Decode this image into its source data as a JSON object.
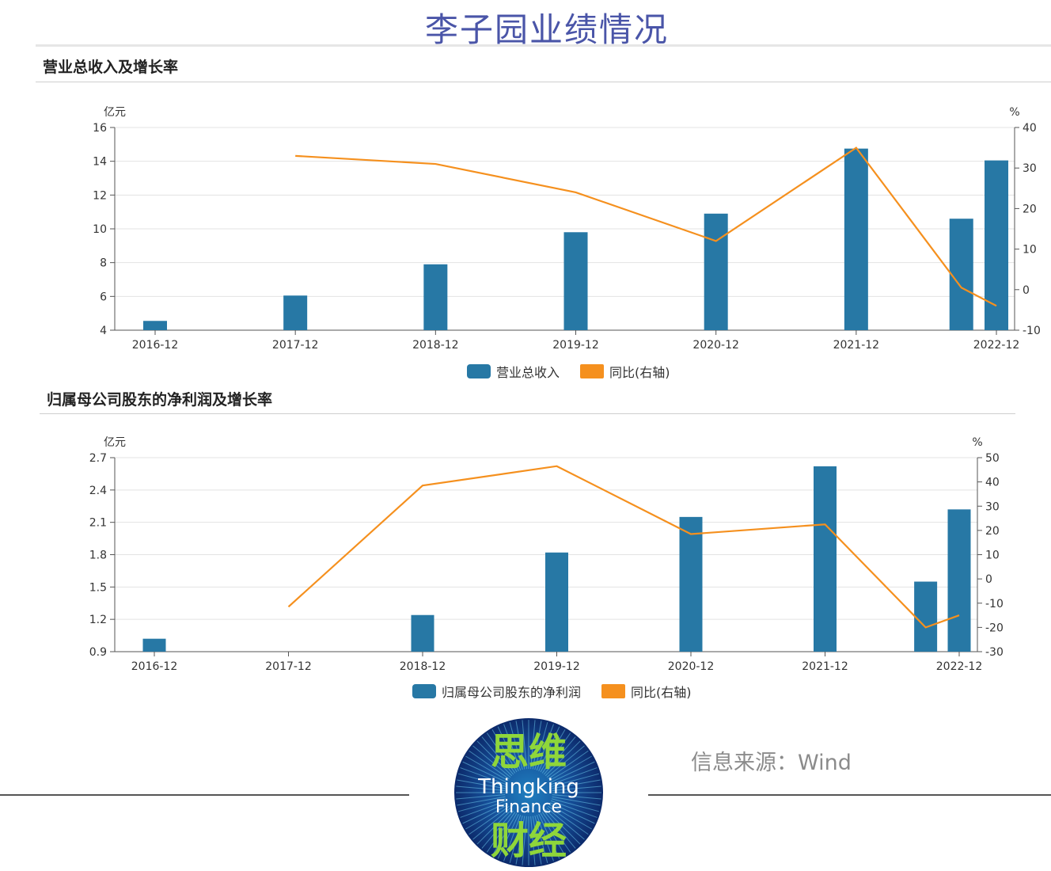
{
  "page": {
    "title": "李子园业绩情况",
    "source_text": "信息来源：Wind",
    "logo": {
      "line1": "思维",
      "line2": "Thingking",
      "line3": "Finance",
      "line4": "财经"
    }
  },
  "colors": {
    "bar": "#2778a5",
    "line": "#f5901e",
    "title": "#4a55a8"
  },
  "chart_data": [
    {
      "type": "bar",
      "title": "营业总收入及增长率",
      "left_unit": "亿元",
      "right_unit": "%",
      "categories": [
        "2016-12",
        "2017-12",
        "2018-12",
        "2019-12",
        "2020-12",
        "2021-12",
        "2022-12"
      ],
      "left_ticks": [
        "4",
        "6",
        "8",
        "10",
        "12",
        "14",
        "16"
      ],
      "right_ticks": [
        "-10",
        "0",
        "10",
        "20",
        "30",
        "40"
      ],
      "ylim": [
        4,
        16
      ],
      "ylim_right": [
        -10,
        40
      ],
      "series": [
        {
          "name": "营业总收入",
          "type": "bar",
          "points": [
            {
              "x": 0,
              "y": 4.55
            },
            {
              "x": 1,
              "y": 6.05
            },
            {
              "x": 2,
              "y": 7.9
            },
            {
              "x": 3,
              "y": 9.8
            },
            {
              "x": 4,
              "y": 10.9
            },
            {
              "x": 5,
              "y": 14.75
            },
            {
              "x": 5.75,
              "y": 10.6
            },
            {
              "x": 6,
              "y": 14.05
            }
          ]
        },
        {
          "name": "同比(右轴)",
          "type": "line",
          "axis": "right",
          "points": [
            {
              "x": 1,
              "y": 33.0
            },
            {
              "x": 2,
              "y": 31.0
            },
            {
              "x": 3,
              "y": 24.0
            },
            {
              "x": 4,
              "y": 12.0
            },
            {
              "x": 5,
              "y": 35.0
            },
            {
              "x": 5.75,
              "y": 0.5
            },
            {
              "x": 6,
              "y": -4.0
            }
          ]
        }
      ]
    },
    {
      "type": "bar",
      "title": "归属母公司股东的净利润及增长率",
      "left_unit": "亿元",
      "right_unit": "%",
      "categories": [
        "2016-12",
        "2017-12",
        "2018-12",
        "2019-12",
        "2020-12",
        "2021-12",
        "2022-12"
      ],
      "left_ticks": [
        "0.9",
        "1.2",
        "1.5",
        "1.8",
        "2.1",
        "2.4",
        "2.7"
      ],
      "right_ticks": [
        "-30",
        "-20",
        "-10",
        "0",
        "10",
        "20",
        "30",
        "40",
        "50"
      ],
      "ylim": [
        0.9,
        2.7
      ],
      "ylim_right": [
        -30,
        50
      ],
      "series": [
        {
          "name": "归属母公司股东的净利润",
          "type": "bar",
          "points": [
            {
              "x": 0,
              "y": 1.02
            },
            {
              "x": 2,
              "y": 1.24
            },
            {
              "x": 3,
              "y": 1.82
            },
            {
              "x": 4,
              "y": 2.15
            },
            {
              "x": 5,
              "y": 2.62
            },
            {
              "x": 5.75,
              "y": 1.55
            },
            {
              "x": 6,
              "y": 2.22
            }
          ]
        },
        {
          "name": "同比(右轴)",
          "type": "line",
          "axis": "right",
          "points": [
            {
              "x": 1,
              "y": -11.5
            },
            {
              "x": 2,
              "y": 38.5
            },
            {
              "x": 3,
              "y": 46.5
            },
            {
              "x": 4,
              "y": 18.5
            },
            {
              "x": 5,
              "y": 22.5
            },
            {
              "x": 5.75,
              "y": -20.0
            },
            {
              "x": 6,
              "y": -15.0
            }
          ]
        }
      ]
    }
  ]
}
